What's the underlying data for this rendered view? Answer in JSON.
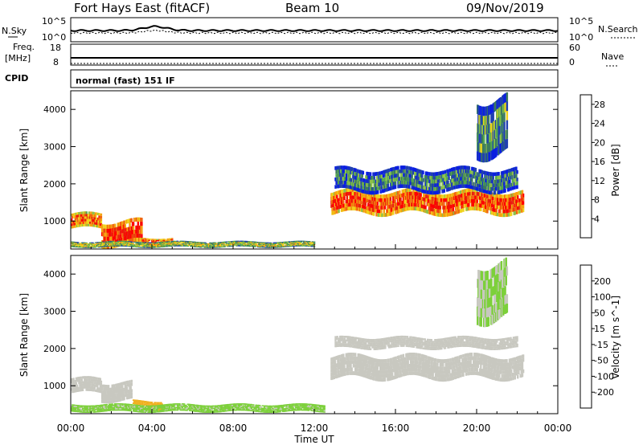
{
  "header": {
    "title": "Fort Hays East (fitACF)",
    "beam": "Beam 10",
    "date": "09/Nov/2019"
  },
  "status_panels": {
    "nsky_label": "N.Sky",
    "nsky_ticks": [
      "10^5",
      "10^0"
    ],
    "nsearch_label": "N.Search",
    "nsearch_ticks": [
      "10^5",
      "10^0"
    ],
    "freq_label": "Freq.",
    "freq_unit": "[MHz]",
    "freq_ticks": [
      "18",
      "8"
    ],
    "nave_label": "Nave",
    "nave_ticks": [
      "60",
      "0"
    ],
    "cpid_label": "CPID",
    "cpid_value": "normal (fast) 151 IF"
  },
  "chart_data": [
    {
      "type": "heatmap",
      "name": "power",
      "ylabel": "Slant Range [km]",
      "xlim_hours": [
        0,
        24
      ],
      "ylim": [
        250,
        4500
      ],
      "yticks": [
        "1000",
        "2000",
        "3000",
        "4000"
      ],
      "colorbar": {
        "label": "Power [dB]",
        "range": [
          0,
          30
        ],
        "ticks": [
          "4",
          "8",
          "12",
          "16",
          "20",
          "24",
          "28"
        ],
        "colors": [
          "#0a1fe0",
          "#2040b0",
          "#3b7a5e",
          "#54a84c",
          "#8cc04a",
          "#f0d21a",
          "#f5a10f",
          "#f06410",
          "#e8200c",
          "#ff0000"
        ]
      },
      "echo_bands": [
        {
          "t": [
            0.0,
            1.5
          ],
          "r": [
            800,
            1200
          ],
          "power": 22
        },
        {
          "t": [
            1.5,
            3.5
          ],
          "r": [
            350,
            1000
          ],
          "power": 26
        },
        {
          "t": [
            3.5,
            5.0
          ],
          "r": [
            350,
            550
          ],
          "power": 24
        },
        {
          "t": [
            0.0,
            12.0
          ],
          "r": [
            300,
            450
          ],
          "power": 14
        },
        {
          "t": [
            12.8,
            22.3
          ],
          "r": [
            1200,
            1800
          ],
          "power": 24
        },
        {
          "t": [
            13.0,
            22.0
          ],
          "r": [
            1800,
            2400
          ],
          "power": 8
        },
        {
          "t": [
            20.0,
            21.5
          ],
          "r": [
            2800,
            4300
          ],
          "power": 10
        }
      ]
    },
    {
      "type": "heatmap",
      "name": "velocity",
      "ylabel": "Slant Range [km]",
      "xlabel": "Time UT",
      "xticks": [
        "00:00",
        "04:00",
        "08:00",
        "12:00",
        "16:00",
        "20:00",
        "00:00"
      ],
      "xlim_hours": [
        0,
        24
      ],
      "ylim": [
        250,
        4500
      ],
      "yticks": [
        "1000",
        "2000",
        "3000",
        "4000"
      ],
      "colorbar": {
        "label": "Velocity [m s^-1]",
        "range": [
          -250,
          250
        ],
        "ticks": [
          "200",
          "100",
          "50",
          "15",
          "-15",
          "-50",
          "-100",
          "-200"
        ],
        "colors": [
          "#1a3aa8",
          "#2a6a8a",
          "#3a8a3a",
          "#7cd03a",
          "#c8c8c0",
          "#f0b020",
          "#f58c10",
          "#f06010",
          "#e81010"
        ]
      },
      "echo_bands": [
        {
          "t": [
            0.0,
            1.5
          ],
          "r": [
            800,
            1200
          ],
          "velocity": 0
        },
        {
          "t": [
            1.5,
            3.0
          ],
          "r": [
            600,
            1100
          ],
          "velocity": 0
        },
        {
          "t": [
            3.0,
            4.5
          ],
          "r": [
            350,
            600
          ],
          "velocity": 60
        },
        {
          "t": [
            0.0,
            12.5
          ],
          "r": [
            300,
            500
          ],
          "velocity": -40
        },
        {
          "t": [
            12.8,
            22.3
          ],
          "r": [
            1200,
            1800
          ],
          "velocity": 0
        },
        {
          "t": [
            13.0,
            22.0
          ],
          "r": [
            2000,
            2300
          ],
          "velocity": 0
        },
        {
          "t": [
            20.0,
            21.5
          ],
          "r": [
            2800,
            4300
          ],
          "velocity": -30
        }
      ]
    }
  ]
}
